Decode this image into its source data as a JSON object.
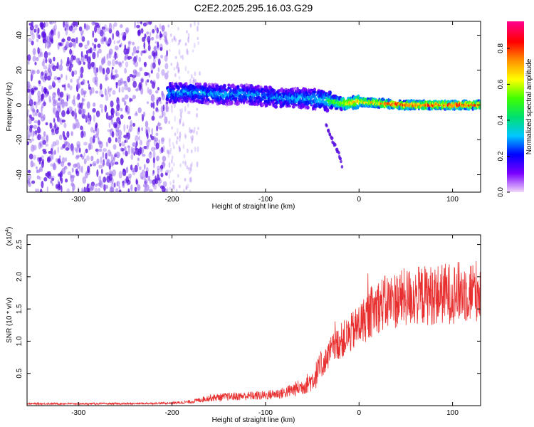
{
  "title": "C2E2.2025.295.16.03.G29",
  "colors": {
    "spectrogram_noise": "#9a6cf0",
    "spectrogram_dense": "#5a10e0",
    "snr_line": "#e83030"
  },
  "chart_data": [
    {
      "type": "heatmap",
      "xlabel": "Height of straight line (km)",
      "ylabel": "Frequency (Hz)",
      "xlim": [
        -355,
        130
      ],
      "ylim": [
        -50,
        48
      ],
      "x_ticks": [
        -300,
        -200,
        -100,
        0,
        100
      ],
      "y_ticks": [
        -40,
        -20,
        0,
        20,
        40
      ],
      "colorbar": {
        "label": "Normalized spectral amplitude",
        "range": [
          0.0,
          0.95
        ],
        "ticks": [
          0.0,
          0.2,
          0.4,
          0.6,
          0.8
        ],
        "colormap": [
          "#f0d8f8",
          "#7a00ff",
          "#0000ff",
          "#00c8ff",
          "#00e070",
          "#40ff00",
          "#ffff00",
          "#ff9000",
          "#ff0000",
          "#ff0090"
        ]
      },
      "signal_track": {
        "x": [
          -205,
          -180,
          -150,
          -120,
          -100,
          -80,
          -60,
          -40,
          -30,
          -20,
          -10,
          0,
          20,
          50,
          80,
          100,
          130
        ],
        "center_freq": [
          7,
          7,
          6,
          6,
          5,
          4,
          4,
          3,
          2,
          1,
          1,
          2,
          1,
          0,
          0,
          0,
          0
        ],
        "amplitude": [
          0.3,
          0.3,
          0.3,
          0.3,
          0.28,
          0.3,
          0.32,
          0.35,
          0.5,
          0.6,
          0.7,
          0.75,
          0.8,
          0.85,
          0.85,
          0.85,
          0.85
        ]
      },
      "secondary_track": {
        "x": [
          -35,
          -30,
          -25,
          -20,
          -18
        ],
        "freq": [
          -12,
          -18,
          -24,
          -30,
          -35
        ]
      }
    },
    {
      "type": "line",
      "xlabel": "Height of straight line (km)",
      "ylabel": "SNR (10 * v/v)",
      "yscale_label": "(x10",
      "yscale_exponent": "4",
      "xlim": [
        -355,
        130
      ],
      "ylim": [
        0,
        2.65
      ],
      "x_ticks": [
        -300,
        -200,
        -100,
        0,
        100
      ],
      "y_ticks": [
        0.5,
        1.0,
        1.5,
        2.0,
        2.5
      ],
      "series": [
        {
          "x": [
            -355,
            -300,
            -250,
            -200,
            -180,
            -160,
            -140,
            -120,
            -100,
            -80,
            -60,
            -50,
            -40,
            -30,
            -20,
            -10,
            0,
            10,
            20,
            40,
            60,
            80,
            100,
            120,
            130
          ],
          "values": [
            0.03,
            0.03,
            0.03,
            0.04,
            0.06,
            0.12,
            0.14,
            0.15,
            0.16,
            0.2,
            0.3,
            0.4,
            0.6,
            0.85,
            1.0,
            1.1,
            1.25,
            1.4,
            1.55,
            1.65,
            1.7,
            1.72,
            1.75,
            1.78,
            1.8
          ]
        }
      ]
    }
  ]
}
